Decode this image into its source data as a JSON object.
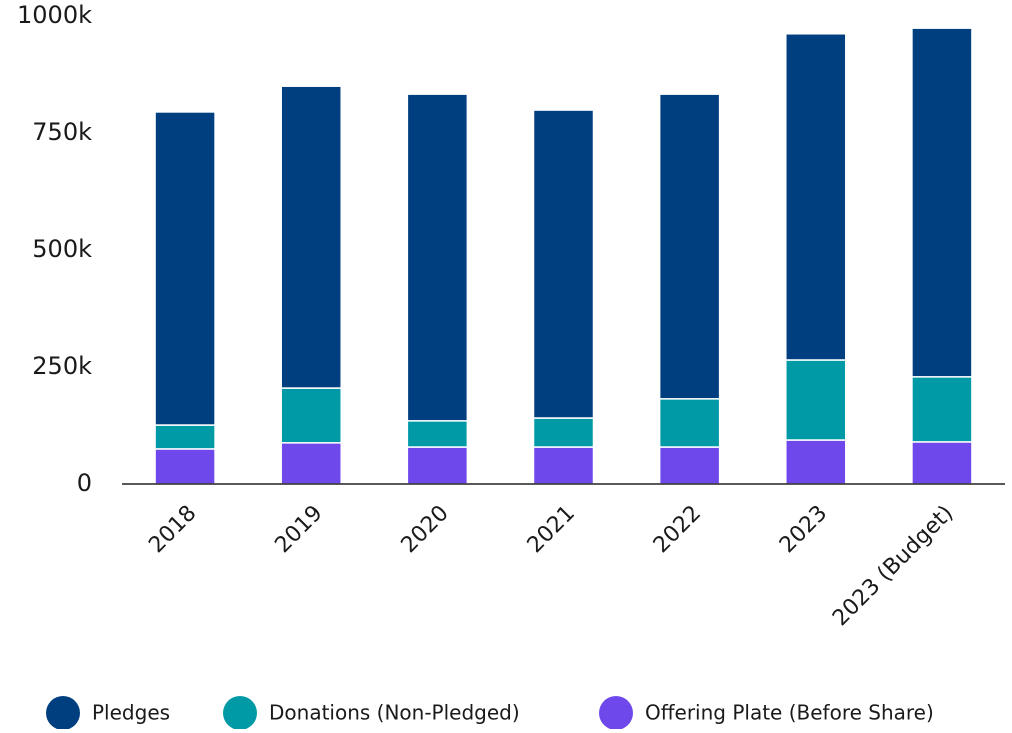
{
  "chart_data": {
    "type": "bar",
    "stacked": true,
    "categories": [
      "2018",
      "2019",
      "2020",
      "2021",
      "2022",
      "2023",
      "2023 (Budget)"
    ],
    "series": [
      {
        "name": "Offering Plate (Before Share)",
        "color": "#6f48eb",
        "values": [
          75,
          88,
          79,
          79,
          79,
          94,
          90
        ]
      },
      {
        "name": "Donations (Non-Pledged)",
        "color": "#009aa6",
        "values": [
          51,
          117,
          56,
          62,
          103,
          171,
          139
        ]
      },
      {
        "name": "Pledges",
        "color": "#003f7f",
        "values": [
          669,
          645,
          698,
          658,
          651,
          697,
          745
        ]
      }
    ],
    "legend_order": [
      2,
      1,
      0
    ],
    "ylim": [
      0,
      1000
    ],
    "yticks": [
      0,
      {
        "value": 250,
        "label": "250k"
      },
      {
        "value": 500,
        "label": "500k"
      },
      {
        "value": 750,
        "label": "750k"
      },
      {
        "value": 1000,
        "label": "1000k"
      }
    ],
    "grid": false
  }
}
